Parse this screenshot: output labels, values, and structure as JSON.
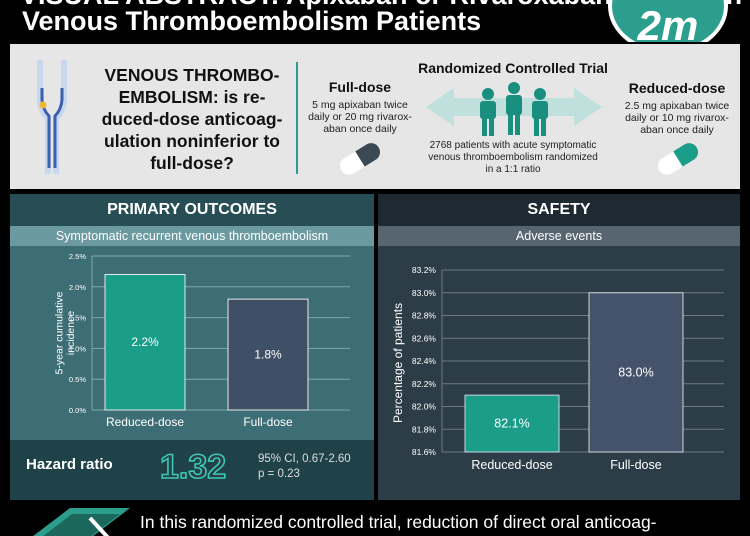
{
  "header": {
    "title_line1": "VISUAL ABSTRACT: Apixaban or Rivaroxaban Dosing in",
    "title_line2": "Venous Thromboembolism Patients",
    "logo_text": "2m"
  },
  "study": {
    "question": "VENOUS THROMBO-EMBOLISM: is reduced-dose anticoagulation noninferior to full-dose?",
    "question_lines": [
      "VENOUS THROMBO-",
      "EMBOLISM: is re-",
      "duced-dose anticoag-",
      "ulation noninferior to",
      "full-dose?"
    ],
    "full_dose_title": "Full-dose",
    "full_dose_desc_lines": [
      "5 mg apixaban twice",
      "daily or 20 mg rivarox-",
      "aban once daily"
    ],
    "rct_title": "Randomized Controlled Trial",
    "rct_desc_lines": [
      "2768 patients with acute symptomatic",
      "venous thromboembolism randomized",
      "in a 1:1 ratio"
    ],
    "reduced_dose_title": "Reduced-dose",
    "reduced_dose_desc_lines": [
      "2.5 mg apixaban twice",
      "daily or 10 mg rivarox-",
      "aban once daily"
    ]
  },
  "primary": {
    "heading": "PRIMARY OUTCOMES",
    "subheading": "Symptomatic recurrent venous thromboembolism",
    "hazard_label": "Hazard ratio",
    "hazard_value": "1.32",
    "ci_text": "95% CI, 0.67-2.60",
    "p_text": "p = 0.23"
  },
  "safety": {
    "heading": "SAFETY",
    "subheading": "Adverse events"
  },
  "chart_data": [
    {
      "type": "bar",
      "categories": [
        "Reduced-dose",
        "Full-dose"
      ],
      "values": [
        2.2,
        1.8
      ],
      "value_labels": [
        "2.2%",
        "1.8%"
      ],
      "ylabel_lines": [
        "5-year cumulative",
        "incidence"
      ],
      "ylim": [
        0,
        2.5
      ],
      "yticks": [
        0,
        0.5,
        1.0,
        1.5,
        2.0,
        2.5
      ],
      "ytick_labels": [
        "0.0%",
        "0.5%",
        "1.0%",
        "1.5%",
        "2.0%",
        "2.5%"
      ],
      "grid": true,
      "colors": [
        "#1a9e8a",
        "#3f4f66"
      ]
    },
    {
      "type": "bar",
      "categories": [
        "Reduced-dose",
        "Full-dose"
      ],
      "values": [
        82.1,
        83.0
      ],
      "value_labels": [
        "82.1%",
        "83.0%"
      ],
      "ylabel_lines": [
        "Percentage of patients"
      ],
      "ylim": [
        81.6,
        83.2
      ],
      "yticks": [
        81.6,
        81.8,
        82.0,
        82.2,
        82.4,
        82.6,
        82.8,
        83.0,
        83.2
      ],
      "ytick_labels": [
        "81.6%",
        "81.8%",
        "82.0%",
        "82.2%",
        "82.4%",
        "82.6%",
        "82.8%",
        "83.0%",
        "83.2%"
      ],
      "grid": true,
      "colors": [
        "#1a9e8a",
        "#44536a"
      ]
    }
  ],
  "conclusion": {
    "text": "In this randomized controlled trial, reduction of direct oral anticoag-"
  },
  "colors": {
    "teal": "#2b9e8e",
    "accent_bar": "#1a9e8a",
    "slate_bar": "#3f4f66"
  }
}
